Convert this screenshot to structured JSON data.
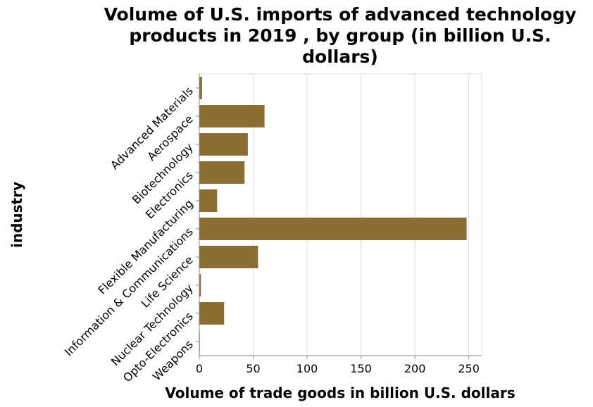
{
  "chart_data": {
    "type": "bar",
    "orientation": "horizontal",
    "title": [
      "Volume of U.S. imports of advanced technology",
      "products in 2019 , by group (in billion U.S.",
      "dollars)"
    ],
    "xlabel": "Volume of trade goods in billion U.S. dollars",
    "ylabel": "industry",
    "xlim": [
      0,
      262
    ],
    "xticks": [
      0,
      50,
      100,
      150,
      200,
      250
    ],
    "grid": true,
    "bar_color": "#8a6d32",
    "categories": [
      "Advanced Materials",
      "Aerospace",
      "Biotechnology",
      "Electronics",
      "Flexible Manufacturing",
      "Information & Communications",
      "Life Science",
      "Nuclear Technology",
      "Opto-Electronics",
      "Weapons"
    ],
    "values": [
      2.5,
      60.5,
      45,
      42,
      16.5,
      248,
      54.5,
      1.5,
      23,
      0.5
    ]
  }
}
